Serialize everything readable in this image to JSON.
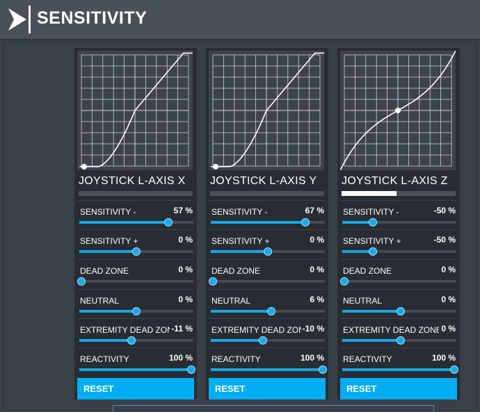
{
  "header": {
    "title": "SENSITIVITY"
  },
  "panels": [
    {
      "axis": "JOYSTICK L-AXIS X",
      "curve": "x",
      "tag_fill": 0,
      "params": [
        {
          "label": "SENSITIVITY -",
          "value": "57 %",
          "fraction": 0.78
        },
        {
          "label": "SENSITIVITY +",
          "value": "0 %",
          "fraction": 0.5
        },
        {
          "label": "DEAD ZONE",
          "value": "0 %",
          "fraction": 0.0
        },
        {
          "label": "NEUTRAL",
          "value": "0 %",
          "fraction": 0.5
        },
        {
          "label": "EXTREMITY DEAD ZONE",
          "value": "-11 %",
          "fraction": 0.46
        },
        {
          "label": "REACTIVITY",
          "value": "100 %",
          "fraction": 1.0
        }
      ],
      "reset_label": "RESET"
    },
    {
      "axis": "JOYSTICK L-AXIS Y",
      "curve": "y",
      "tag_fill": 0,
      "params": [
        {
          "label": "SENSITIVITY -",
          "value": "67 %",
          "fraction": 0.83
        },
        {
          "label": "SENSITIVITY +",
          "value": "0 %",
          "fraction": 0.5
        },
        {
          "label": "DEAD ZONE",
          "value": "0 %",
          "fraction": 0.0
        },
        {
          "label": "NEUTRAL",
          "value": "6 %",
          "fraction": 0.53
        },
        {
          "label": "EXTREMITY DEAD ZONE",
          "value": "-10 %",
          "fraction": 0.46
        },
        {
          "label": "REACTIVITY",
          "value": "100 %",
          "fraction": 1.0
        }
      ],
      "reset_label": "RESET"
    },
    {
      "axis": "JOYSTICK L-AXIS Z",
      "curve": "z",
      "tag_fill": 0.48,
      "params": [
        {
          "label": "SENSITIVITY -",
          "value": "-50 %",
          "fraction": 0.27
        },
        {
          "label": "SENSITIVITY +",
          "value": "-50 %",
          "fraction": 0.27
        },
        {
          "label": "DEAD ZONE",
          "value": "0 %",
          "fraction": 0.0
        },
        {
          "label": "NEUTRAL",
          "value": "0 %",
          "fraction": 0.51
        },
        {
          "label": "EXTREMITY DEAD ZONE",
          "value": "0 %",
          "fraction": 0.51
        },
        {
          "label": "REACTIVITY",
          "value": "100 %",
          "fraction": 1.0
        }
      ],
      "reset_label": "RESET"
    }
  ],
  "colors": {
    "accent": "#00aef3",
    "panel": "#282d34",
    "track": "#454b53"
  }
}
